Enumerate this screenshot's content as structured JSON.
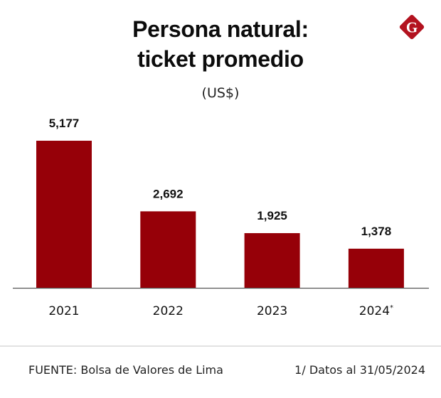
{
  "header": {
    "title_line1": "Persona natural:",
    "title_line2": "ticket promedio",
    "subtitle": "(US$)",
    "logo_letter": "G"
  },
  "colors": {
    "bar": "#960008",
    "logo": "#b3121f",
    "axis": "#555555"
  },
  "chart_data": {
    "type": "bar",
    "title": "Persona natural: ticket promedio",
    "subtitle": "(US$)",
    "categories": [
      "2021",
      "2022",
      "2023",
      "2024*"
    ],
    "values": [
      5177,
      2692,
      1925,
      1378
    ],
    "value_labels": [
      "5,177",
      "2,692",
      "1,925",
      "1,378"
    ],
    "xlabel": "",
    "ylabel": "",
    "ylim": [
      0,
      5177
    ],
    "grid": false,
    "legend": "none"
  },
  "footer": {
    "source": "FUENTE:  Bolsa de Valores de Lima",
    "note": "1/ Datos al 31/05/2024"
  }
}
